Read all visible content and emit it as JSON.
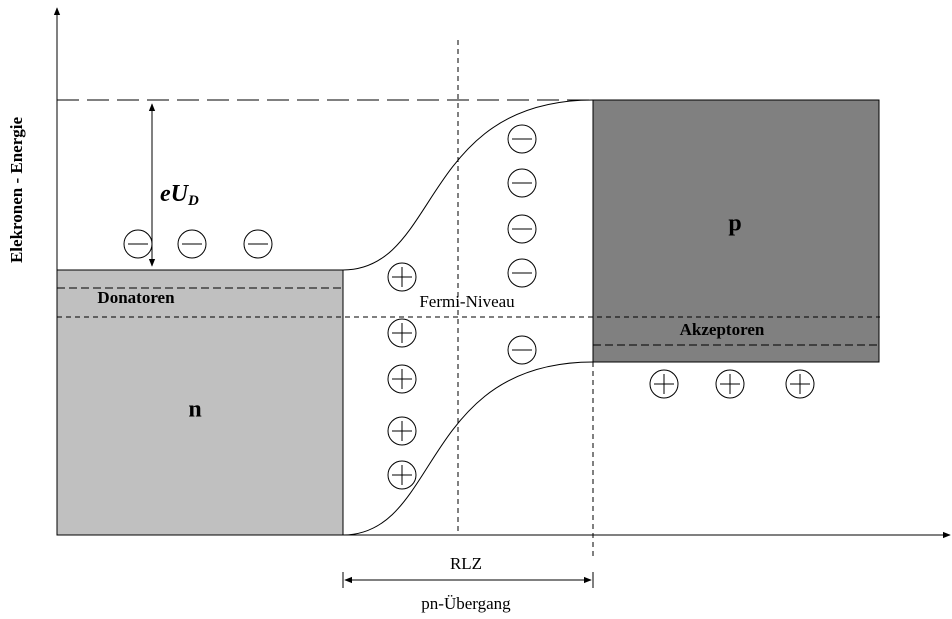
{
  "axis_label": "Elekronen - Energie",
  "potential_label": {
    "main": "eU",
    "sub": "D"
  },
  "regions": {
    "n": "n",
    "p": "p"
  },
  "levels": {
    "donor": "Donatoren",
    "acceptor": "Akzeptoren",
    "fermi": "Fermi-Niveau"
  },
  "junction": {
    "width": "RLZ",
    "name": "pn-Übergang"
  }
}
